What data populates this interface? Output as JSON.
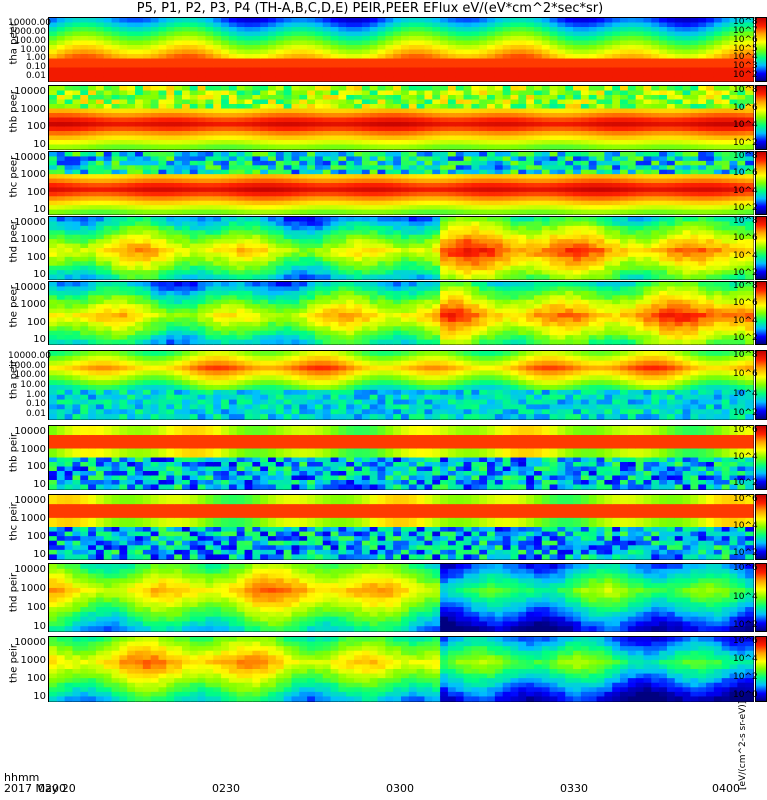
{
  "chart_data": {
    "type": "heatmap",
    "title": "P5, P1, P2, P3, P4 (TH-A,B,C,D,E) PEIR,PEER EFlux eV/(eV*cm^2*sec*sr)",
    "x": {
      "ticks": [
        "0200",
        "0230",
        "0300",
        "0330",
        "0400"
      ]
    },
    "time_labels": [
      "hhmm",
      "2017 May 20"
    ],
    "colorbar_units": "[eV/(cm^2-s sr-eV)]",
    "panels": [
      {
        "name": "tha peer",
        "y_ticks": [
          "10000.00",
          "1000.00",
          "100.00",
          "10.00",
          "1.00",
          "0.10",
          "0.01"
        ],
        "cb_ticks": [
          "10^8",
          "10^7",
          "10^6",
          "10^5",
          "10^4",
          "10^3",
          "10^2"
        ]
      },
      {
        "name": "thb peer",
        "y_ticks": [
          "10000",
          "1000",
          "100",
          "10"
        ],
        "cb_ticks": [
          "10^8",
          "10^6",
          "10^4",
          "10^2"
        ]
      },
      {
        "name": "thc peer",
        "y_ticks": [
          "10000",
          "1000",
          "100",
          "10"
        ],
        "cb_ticks": [
          "10^8",
          "10^6",
          "10^4",
          "10^2"
        ]
      },
      {
        "name": "thd peer",
        "y_ticks": [
          "10000",
          "1000",
          "100",
          "10"
        ],
        "cb_ticks": [
          "10^8",
          "10^6",
          "10^4",
          "10^2"
        ]
      },
      {
        "name": "the peer",
        "y_ticks": [
          "10000",
          "1000",
          "100",
          "10"
        ],
        "cb_ticks": [
          "10^8",
          "10^6",
          "10^4",
          "10^2"
        ]
      },
      {
        "name": "tha peir",
        "y_ticks": [
          "10000.00",
          "1000.00",
          "100.00",
          "10.00",
          "1.00",
          "0.10",
          "0.01"
        ],
        "cb_ticks": [
          "10^8",
          "10^6",
          "10^4",
          "10^2"
        ]
      },
      {
        "name": "thb peir",
        "y_ticks": [
          "10000",
          "1000",
          "100",
          "10"
        ],
        "cb_ticks": [
          "10^6",
          "10^4",
          "10^2"
        ]
      },
      {
        "name": "thc peir",
        "y_ticks": [
          "10000",
          "1000",
          "100",
          "10"
        ],
        "cb_ticks": [
          "10^6",
          "10^4",
          "10^2"
        ]
      },
      {
        "name": "thd peir",
        "y_ticks": [
          "10000",
          "1000",
          "100",
          "10"
        ],
        "cb_ticks": [
          "10^6",
          "10^4",
          "10^2"
        ]
      },
      {
        "name": "the peir",
        "y_ticks": [
          "10000",
          "1000",
          "100",
          "10"
        ],
        "cb_ticks": [
          "10^6",
          "10^4",
          "10^2",
          "10^0"
        ]
      }
    ]
  },
  "colors": {
    "colormap": [
      "#000080",
      "#0000ff",
      "#00bfff",
      "#00ff80",
      "#80ff00",
      "#ffff00",
      "#ffa000",
      "#ff2000",
      "#c00000"
    ]
  }
}
